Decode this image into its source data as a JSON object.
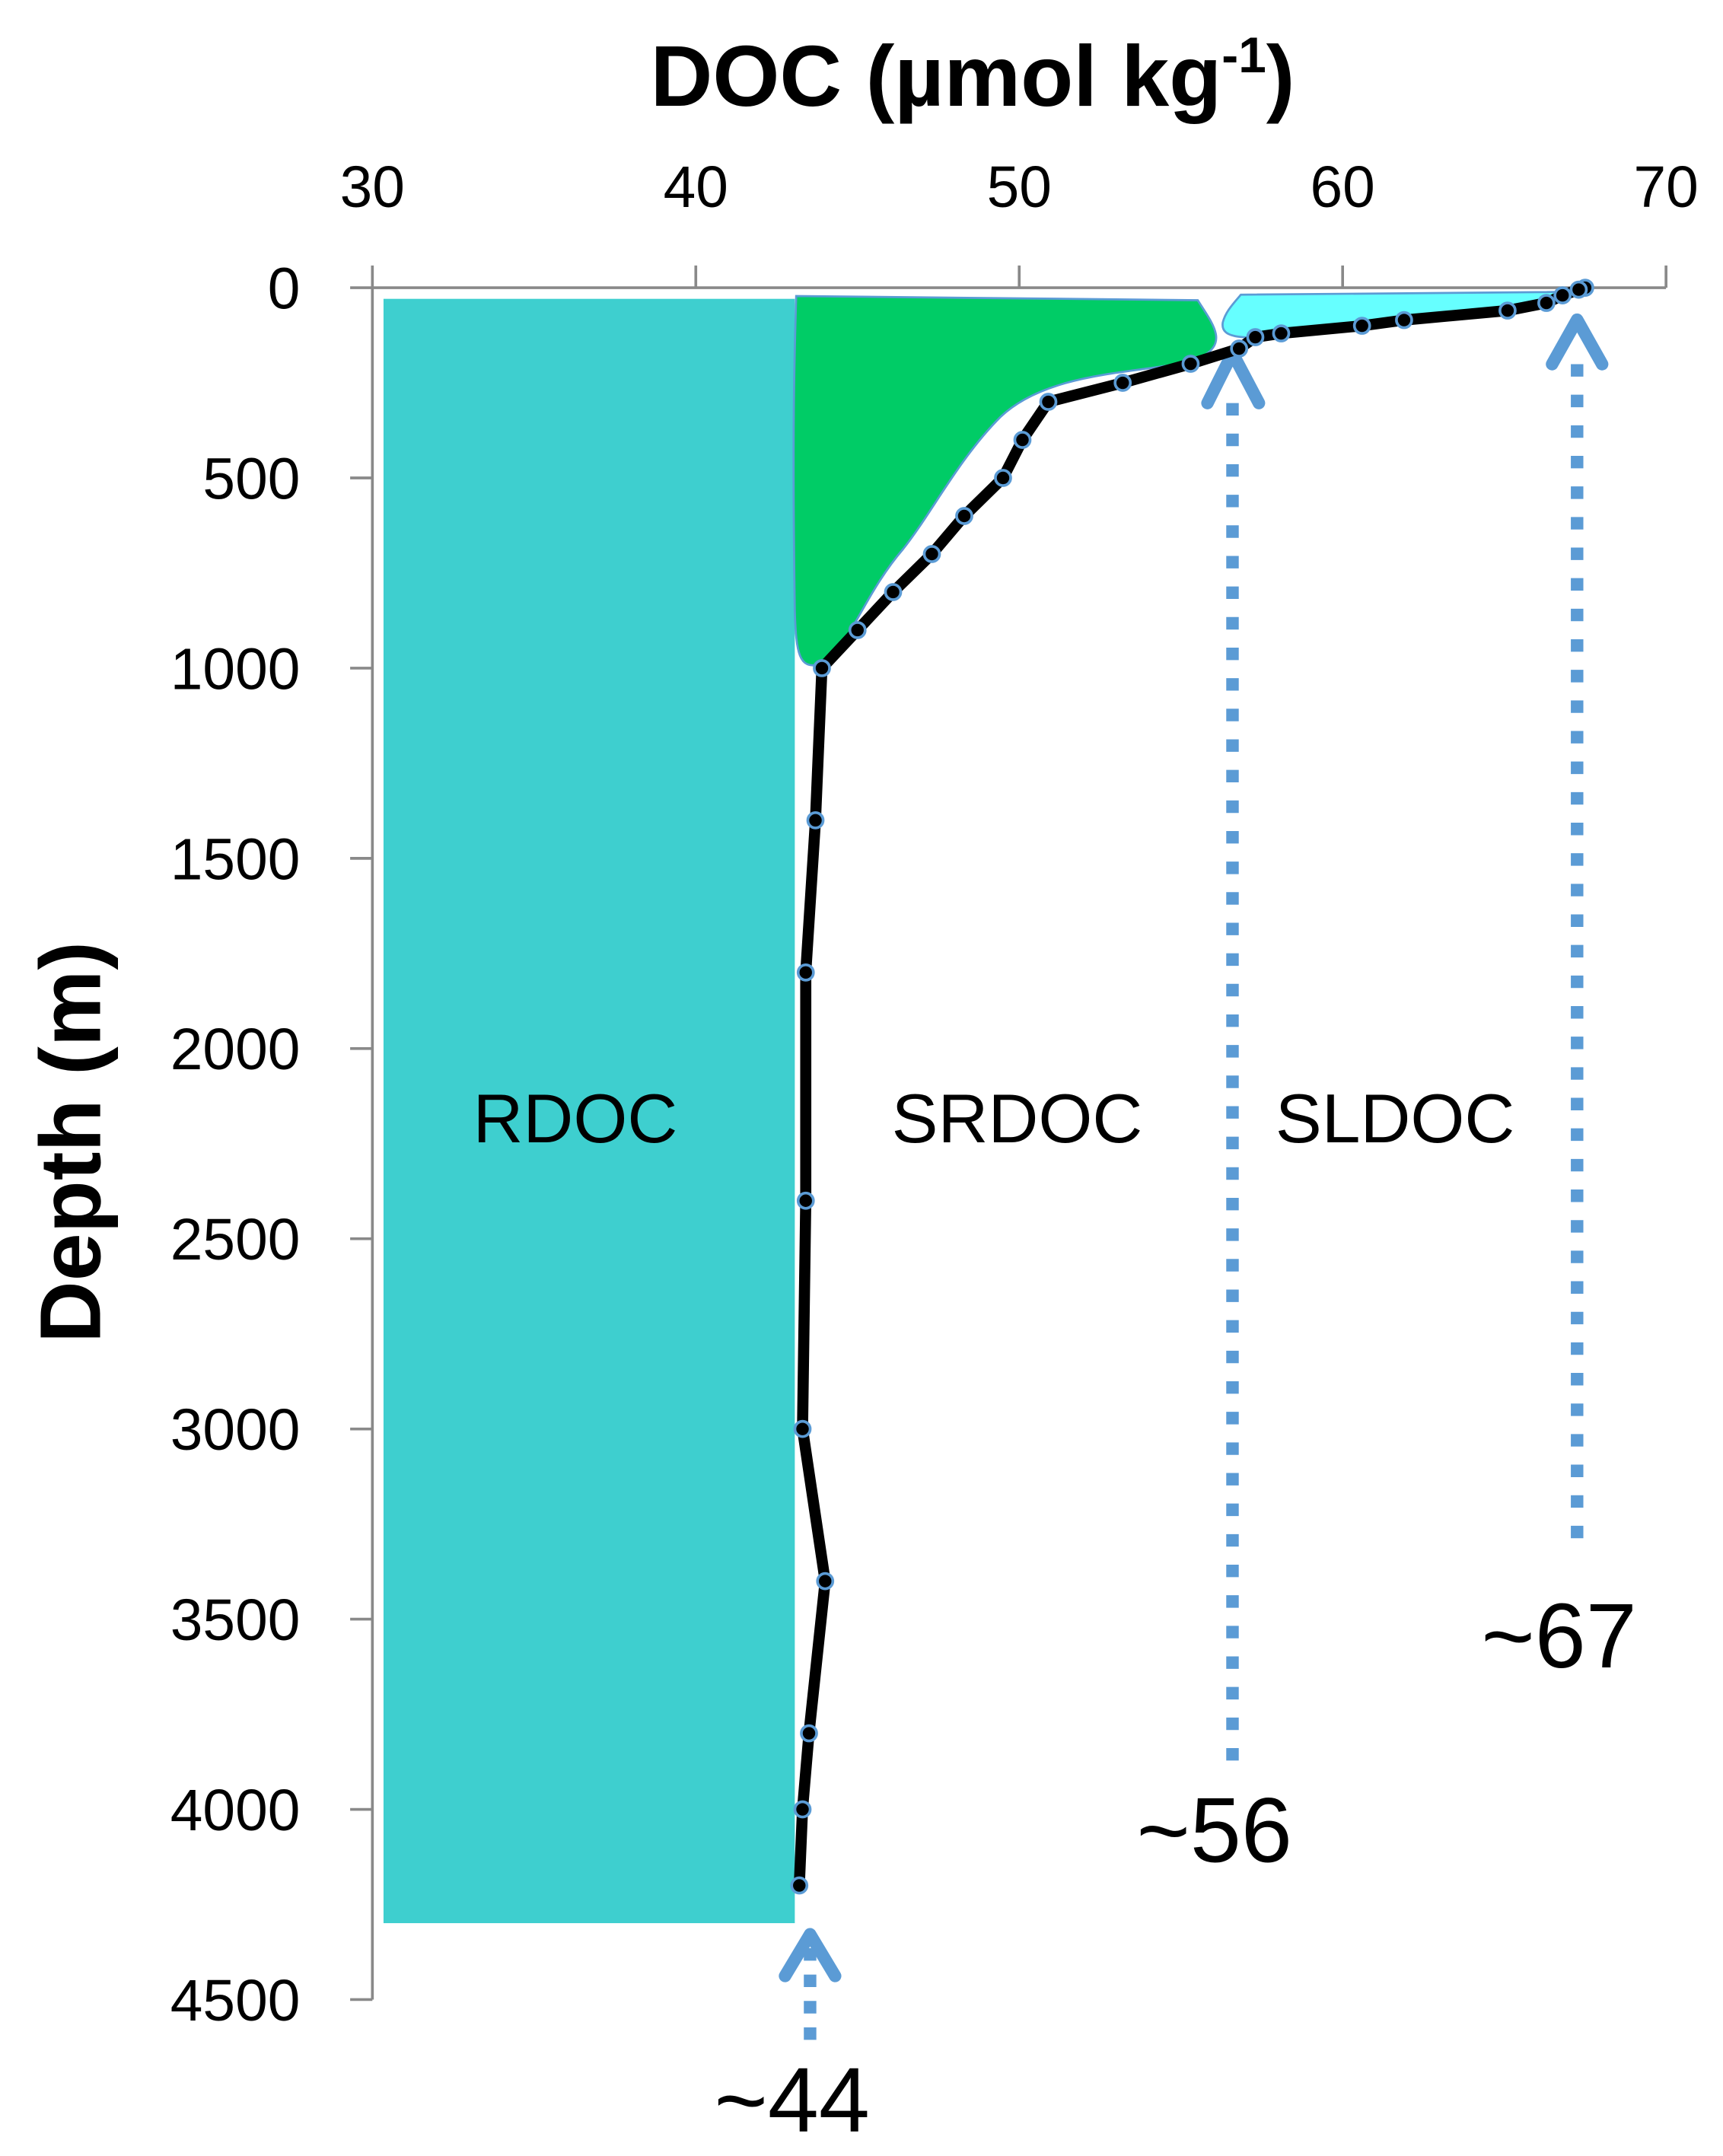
{
  "chart_data": {
    "type": "line",
    "title": "",
    "xlabel": "DOC (µmol kg",
    "xlabel_superscript": "-1",
    "xlabel_suffix": ")",
    "ylabel": "Depth (m)",
    "x_axis_position": "top",
    "y_axis_inverted": true,
    "xlim": [
      30,
      70
    ],
    "ylim": [
      0,
      4500
    ],
    "x_ticks": [
      "30",
      "40",
      "50",
      "60",
      "70"
    ],
    "y_ticks": [
      "0",
      "500",
      "1000",
      "1500",
      "2000",
      "2500",
      "3000",
      "3500",
      "4000",
      "4500"
    ],
    "grid": false,
    "series": [
      {
        "doc": [
          67.5,
          67.3,
          66.8,
          66.3,
          65.1,
          61.9,
          60.6,
          58.1,
          57.3,
          56.8,
          55.3,
          53.2,
          50.9,
          50.1,
          49.5,
          48.3,
          47.3,
          46.1,
          45.0,
          43.9,
          43.7,
          43.4,
          43.4,
          43.3,
          44.0,
          43.5,
          43.3,
          43.2
        ],
        "depth": [
          0,
          5,
          20,
          40,
          60,
          85,
          100,
          120,
          130,
          160,
          200,
          250,
          300,
          400,
          500,
          600,
          700,
          800,
          900,
          1000,
          1400,
          1800,
          2400,
          3000,
          3400,
          3800,
          4000,
          4200
        ]
      }
    ],
    "regions": [
      {
        "label": "RDOC",
        "color": "#3ECFCF"
      },
      {
        "label": "SRDOC",
        "color": "#00CC66"
      },
      {
        "label": "SLDOC",
        "color": "#66FFFF"
      }
    ],
    "annotations": [
      {
        "text": "~44",
        "doc": 44
      },
      {
        "text": "~56",
        "doc": 56
      },
      {
        "text": "~67",
        "doc": 67
      }
    ],
    "colors": {
      "line": "#000000",
      "marker_edge": "#5B9BD5",
      "arrow": "#5B9BD5",
      "axis": "#898989"
    }
  }
}
